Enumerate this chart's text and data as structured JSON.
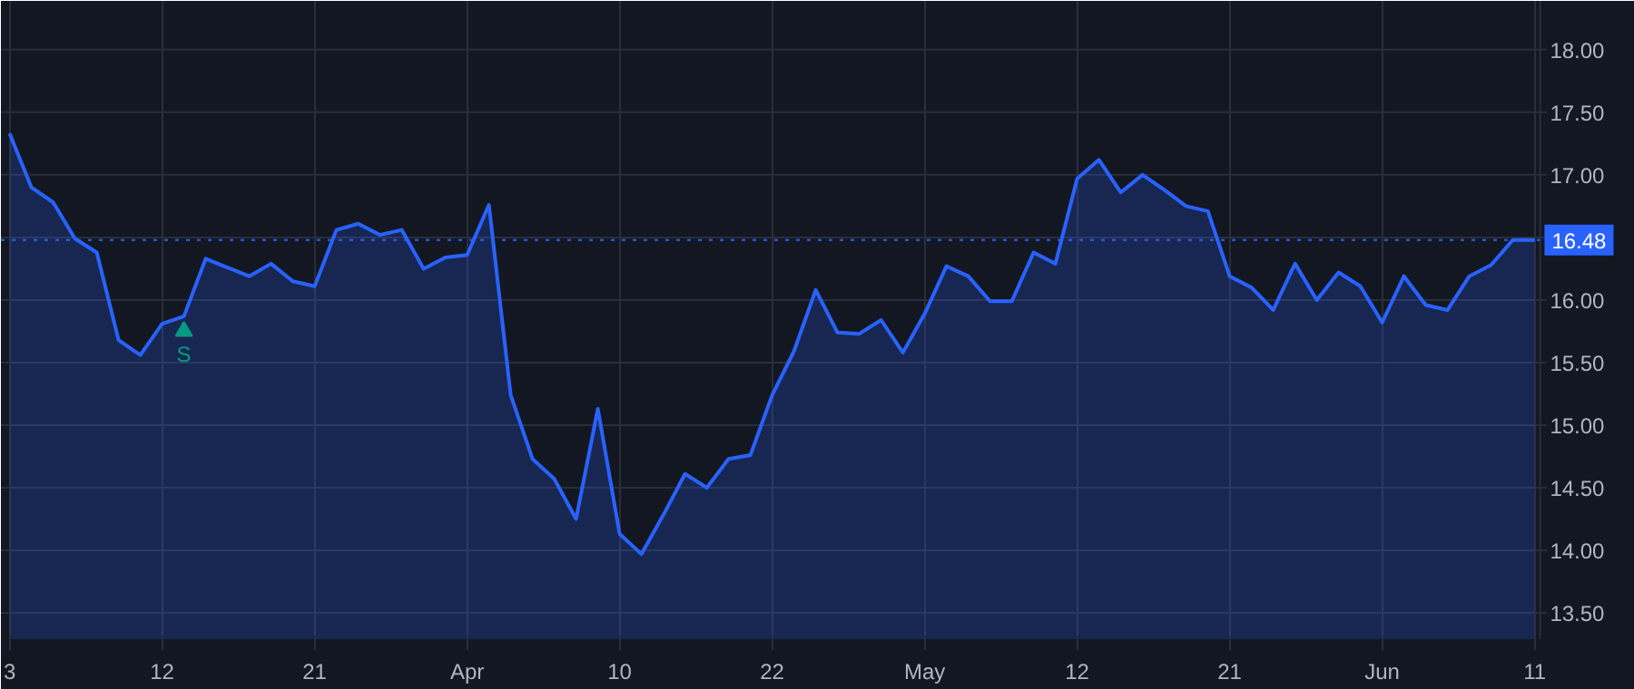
{
  "chart_data": {
    "type": "area",
    "categories": [
      "3",
      null,
      null,
      null,
      null,
      null,
      null,
      "12",
      null,
      null,
      null,
      null,
      null,
      null,
      "21",
      null,
      null,
      null,
      null,
      null,
      null,
      "Apr",
      null,
      null,
      null,
      null,
      null,
      null,
      "10",
      null,
      null,
      null,
      null,
      null,
      null,
      "22",
      null,
      null,
      null,
      null,
      null,
      null,
      "May",
      null,
      null,
      null,
      null,
      null,
      null,
      "12",
      null,
      null,
      null,
      null,
      null,
      null,
      "21",
      null,
      null,
      null,
      null,
      null,
      null,
      "Jun",
      null,
      null,
      null,
      null,
      null,
      null,
      "11"
    ],
    "series": [
      {
        "color": "#2962ff",
        "values": [
          17.33,
          16.9,
          16.78,
          16.49,
          16.38,
          15.68,
          15.56,
          15.81,
          15.87,
          16.33,
          16.26,
          16.19,
          16.29,
          16.15,
          16.11,
          16.56,
          16.61,
          16.52,
          16.56,
          16.25,
          16.34,
          16.36,
          16.76,
          15.24,
          14.73,
          14.57,
          14.25,
          15.13,
          14.13,
          13.97,
          14.28,
          14.61,
          14.5,
          14.73,
          14.76,
          15.24,
          15.59,
          16.08,
          15.74,
          15.73,
          15.84,
          15.58,
          15.89,
          16.27,
          16.19,
          15.99,
          15.99,
          16.38,
          16.29,
          16.97,
          17.12,
          16.86,
          17.0,
          16.88,
          16.75,
          16.71,
          16.19,
          16.1,
          15.92,
          16.29,
          16.0,
          16.22,
          16.11,
          15.82,
          16.19,
          15.96,
          15.92,
          16.19,
          16.28,
          16.48,
          16.48
        ]
      }
    ],
    "ylim": [
      13.29,
      18.39
    ],
    "yticks": [
      {
        "value": 13.5,
        "label": "13.50"
      },
      {
        "value": 14,
        "label": "14.00"
      },
      {
        "value": 14.5,
        "label": "14.50"
      },
      {
        "value": 15,
        "label": "15.00"
      },
      {
        "value": 15.5,
        "label": "15.50"
      },
      {
        "value": 16,
        "label": "16.00"
      },
      {
        "value": 16.5,
        "label": null
      },
      {
        "value": 17,
        "label": "17.00"
      },
      {
        "value": 17.5,
        "label": "17.50"
      },
      {
        "value": 18,
        "label": "18.00"
      }
    ],
    "ref_lines": [
      {
        "axis": "y",
        "value": 16.48,
        "label": "16.48",
        "color": "#2962ff",
        "line_style": "dotted"
      }
    ],
    "annotations": [
      {
        "text": "S",
        "y": 15.75
      }
    ],
    "grid": true,
    "marker": "none",
    "line_style": "solid"
  }
}
